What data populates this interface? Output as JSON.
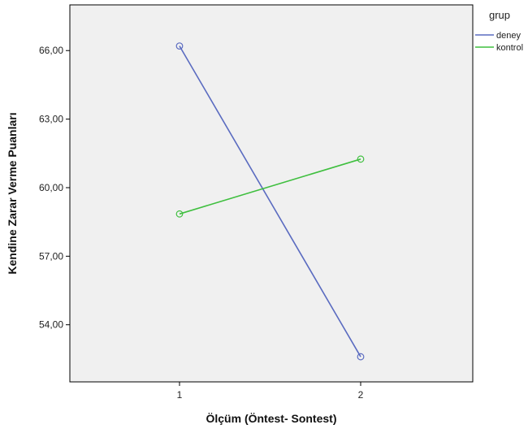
{
  "chart_data": {
    "type": "line",
    "xlabel": "Ölçüm (Öntest- Sontest)",
    "ylabel": "Kendine Zarar Verme Puanları",
    "x": [
      "1",
      "2"
    ],
    "ylim": [
      51.5,
      68.0
    ],
    "yticks": [
      "54,00",
      "57,00",
      "60,00",
      "63,00",
      "66,00"
    ],
    "ytick_values": [
      54,
      57,
      60,
      63,
      66
    ],
    "legend_title": "grup",
    "legend_position": "right",
    "grid": false,
    "background": "#f0f0f0",
    "series": [
      {
        "name": "deney",
        "values": [
          66.2,
          52.6
        ],
        "color": "#5a6bc0"
      },
      {
        "name": "kontrol",
        "values": [
          58.85,
          61.25
        ],
        "color": "#3fbf3f"
      }
    ]
  }
}
